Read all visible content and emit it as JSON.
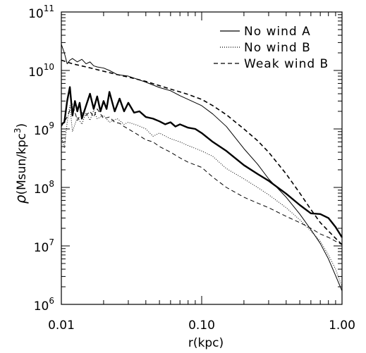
{
  "chart_data": {
    "type": "line",
    "title": "",
    "xlabel": "r(kpc)",
    "ylabel_symbol": "ρ",
    "ylabel_units": "(Msun/kpc",
    "ylabel_units_exp": "3",
    "ylabel_units_close": ")",
    "xscale": "log",
    "yscale": "log",
    "xlim": [
      0.01,
      1.0
    ],
    "ylim": [
      1000000,
      100000000000
    ],
    "x_ticks": [
      {
        "value": 0.01,
        "label": "0.01"
      },
      {
        "value": 0.1,
        "label": "0.10"
      },
      {
        "value": 1.0,
        "label": "1.00"
      }
    ],
    "y_ticks": [
      {
        "value": 1000000,
        "base": "10",
        "exp": "6"
      },
      {
        "value": 10000000,
        "base": "10",
        "exp": "7"
      },
      {
        "value": 100000000,
        "base": "10",
        "exp": "8"
      },
      {
        "value": 1000000000,
        "base": "10",
        "exp": "9"
      },
      {
        "value": 10000000000,
        "base": "10",
        "exp": "10"
      },
      {
        "value": 100000000000,
        "base": "10",
        "exp": "11"
      }
    ],
    "grid": false,
    "legend_position": "top-right",
    "legend": [
      {
        "label": "No wind A",
        "style": "solid"
      },
      {
        "label": "No wind B",
        "style": "dotted"
      },
      {
        "label": "Weak wind B",
        "style": "dashed"
      }
    ],
    "series": [
      {
        "style": "solid",
        "width": "thin",
        "points": [
          [
            0.01,
            28000000000.0
          ],
          [
            0.0105,
            20000000000.0
          ],
          [
            0.011,
            13000000000.0
          ],
          [
            0.0115,
            15000000000.0
          ],
          [
            0.012,
            16000000000.0
          ],
          [
            0.013,
            14000000000.0
          ],
          [
            0.014,
            15500000000.0
          ],
          [
            0.015,
            13000000000.0
          ],
          [
            0.016,
            14000000000.0
          ],
          [
            0.017,
            12000000000.0
          ],
          [
            0.018,
            11500000000.0
          ],
          [
            0.02,
            11000000000.0
          ],
          [
            0.022,
            10000000000.0
          ],
          [
            0.025,
            8500000000.0
          ],
          [
            0.03,
            8000000000.0
          ],
          [
            0.04,
            6300000000.0
          ],
          [
            0.05,
            5100000000.0
          ],
          [
            0.06,
            4500000000.0
          ],
          [
            0.07,
            3700000000.0
          ],
          [
            0.08,
            3200000000.0
          ],
          [
            0.1,
            2500000000.0
          ],
          [
            0.12,
            1800000000.0
          ],
          [
            0.15,
            1100000000.0
          ],
          [
            0.2,
            460000000.0
          ],
          [
            0.25,
            250000000.0
          ],
          [
            0.3,
            140000000.0
          ],
          [
            0.4,
            68000000.0
          ],
          [
            0.5,
            35000000.0
          ],
          [
            0.6,
            19000000.0
          ],
          [
            0.7,
            11000000.0
          ],
          [
            0.8,
            6000000.0
          ],
          [
            0.9,
            3100000.0
          ],
          [
            1.0,
            1700000.0
          ]
        ]
      },
      {
        "style": "solid",
        "width": "thick",
        "points": [
          [
            0.01,
            1200000000.0
          ],
          [
            0.0105,
            1300000000.0
          ],
          [
            0.011,
            3000000000.0
          ],
          [
            0.0115,
            5200000000.0
          ],
          [
            0.012,
            1700000000.0
          ],
          [
            0.0125,
            3000000000.0
          ],
          [
            0.013,
            2000000000.0
          ],
          [
            0.0135,
            2800000000.0
          ],
          [
            0.014,
            1500000000.0
          ],
          [
            0.015,
            2500000000.0
          ],
          [
            0.016,
            4000000000.0
          ],
          [
            0.017,
            2200000000.0
          ],
          [
            0.018,
            3600000000.0
          ],
          [
            0.019,
            2000000000.0
          ],
          [
            0.02,
            3000000000.0
          ],
          [
            0.021,
            2200000000.0
          ],
          [
            0.022,
            4300000000.0
          ],
          [
            0.024,
            2000000000.0
          ],
          [
            0.026,
            3300000000.0
          ],
          [
            0.028,
            2000000000.0
          ],
          [
            0.03,
            2800000000.0
          ],
          [
            0.033,
            1900000000.0
          ],
          [
            0.036,
            2000000000.0
          ],
          [
            0.04,
            1600000000.0
          ],
          [
            0.045,
            1500000000.0
          ],
          [
            0.05,
            1350000000.0
          ],
          [
            0.055,
            1200000000.0
          ],
          [
            0.06,
            1300000000.0
          ],
          [
            0.065,
            1100000000.0
          ],
          [
            0.07,
            1200000000.0
          ],
          [
            0.08,
            1050000000.0
          ],
          [
            0.09,
            1000000000.0
          ],
          [
            0.1,
            850000000.0
          ],
          [
            0.12,
            600000000.0
          ],
          [
            0.15,
            420000000.0
          ],
          [
            0.2,
            240000000.0
          ],
          [
            0.25,
            170000000.0
          ],
          [
            0.3,
            130000000.0
          ],
          [
            0.4,
            78000000.0
          ],
          [
            0.5,
            50000000.0
          ],
          [
            0.6,
            36000000.0
          ],
          [
            0.7,
            35000000.0
          ],
          [
            0.8,
            30000000.0
          ],
          [
            0.9,
            21000000.0
          ],
          [
            1.0,
            14000000.0
          ]
        ]
      },
      {
        "style": "dotted",
        "width": "thin",
        "points": [
          [
            0.01,
            750000000.0
          ],
          [
            0.0105,
            470000000.0
          ],
          [
            0.011,
            1300000000.0
          ],
          [
            0.0115,
            2500000000.0
          ],
          [
            0.012,
            900000000.0
          ],
          [
            0.013,
            1600000000.0
          ],
          [
            0.014,
            1200000000.0
          ],
          [
            0.015,
            1900000000.0
          ],
          [
            0.016,
            1400000000.0
          ],
          [
            0.017,
            2100000000.0
          ],
          [
            0.018,
            1500000000.0
          ],
          [
            0.02,
            1700000000.0
          ],
          [
            0.022,
            1300000000.0
          ],
          [
            0.025,
            1500000000.0
          ],
          [
            0.028,
            1200000000.0
          ],
          [
            0.03,
            1300000000.0
          ],
          [
            0.035,
            1150000000.0
          ],
          [
            0.04,
            1000000000.0
          ],
          [
            0.045,
            750000000.0
          ],
          [
            0.05,
            850000000.0
          ],
          [
            0.06,
            680000000.0
          ],
          [
            0.07,
            600000000.0
          ],
          [
            0.08,
            520000000.0
          ],
          [
            0.1,
            420000000.0
          ],
          [
            0.12,
            340000000.0
          ],
          [
            0.15,
            210000000.0
          ],
          [
            0.2,
            140000000.0
          ],
          [
            0.25,
            100000000.0
          ],
          [
            0.3,
            75000000.0
          ],
          [
            0.4,
            45000000.0
          ],
          [
            0.5,
            28000000.0
          ],
          [
            0.6,
            18000000.0
          ],
          [
            0.7,
            12000000.0
          ],
          [
            0.8,
            7000000.0
          ],
          [
            0.9,
            4000000.0
          ],
          [
            1.0,
            2000000.0
          ]
        ]
      },
      {
        "style": "dashed",
        "width": "thin",
        "points": [
          [
            0.01,
            1100000000.0
          ],
          [
            0.011,
            1600000000.0
          ],
          [
            0.012,
            2700000000.0
          ],
          [
            0.013,
            1400000000.0
          ],
          [
            0.014,
            1900000000.0
          ],
          [
            0.015,
            1700000000.0
          ],
          [
            0.016,
            2000000000.0
          ],
          [
            0.017,
            1600000000.0
          ],
          [
            0.018,
            2200000000.0
          ],
          [
            0.02,
            1500000000.0
          ],
          [
            0.022,
            1600000000.0
          ],
          [
            0.024,
            1300000000.0
          ],
          [
            0.026,
            1250000000.0
          ],
          [
            0.028,
            1100000000.0
          ],
          [
            0.03,
            1000000000.0
          ],
          [
            0.035,
            800000000.0
          ],
          [
            0.04,
            650000000.0
          ],
          [
            0.045,
            600000000.0
          ],
          [
            0.05,
            500000000.0
          ],
          [
            0.06,
            400000000.0
          ],
          [
            0.07,
            320000000.0
          ],
          [
            0.08,
            270000000.0
          ],
          [
            0.1,
            220000000.0
          ],
          [
            0.12,
            150000000.0
          ],
          [
            0.15,
            100000000.0
          ],
          [
            0.2,
            68000000.0
          ],
          [
            0.25,
            54000000.0
          ],
          [
            0.3,
            45000000.0
          ],
          [
            0.4,
            32000000.0
          ],
          [
            0.5,
            25000000.0
          ],
          [
            0.6,
            20000000.0
          ],
          [
            0.7,
            16000000.0
          ],
          [
            0.8,
            14000000.0
          ],
          [
            0.9,
            12000000.0
          ],
          [
            1.0,
            10500000.0
          ]
        ]
      },
      {
        "style": "dashed",
        "width": "medium",
        "points": [
          [
            0.01,
            15000000000.0
          ],
          [
            0.012,
            13000000000.0
          ],
          [
            0.015,
            11500000000.0
          ],
          [
            0.02,
            9700000000.0
          ],
          [
            0.025,
            8500000000.0
          ],
          [
            0.03,
            7700000000.0
          ],
          [
            0.04,
            6500000000.0
          ],
          [
            0.05,
            5500000000.0
          ],
          [
            0.06,
            4800000000.0
          ],
          [
            0.07,
            4300000000.0
          ],
          [
            0.08,
            3900000000.0
          ],
          [
            0.1,
            3200000000.0
          ],
          [
            0.12,
            2500000000.0
          ],
          [
            0.15,
            1750000000.0
          ],
          [
            0.2,
            1000000000.0
          ],
          [
            0.25,
            630000000.0
          ],
          [
            0.3,
            400000000.0
          ],
          [
            0.4,
            170000000.0
          ],
          [
            0.5,
            80000000.0
          ],
          [
            0.6,
            42000000.0
          ],
          [
            0.7,
            25000000.0
          ],
          [
            0.8,
            18000000.0
          ],
          [
            0.9,
            13500000.0
          ],
          [
            1.0,
            10500000.0
          ]
        ]
      }
    ]
  }
}
